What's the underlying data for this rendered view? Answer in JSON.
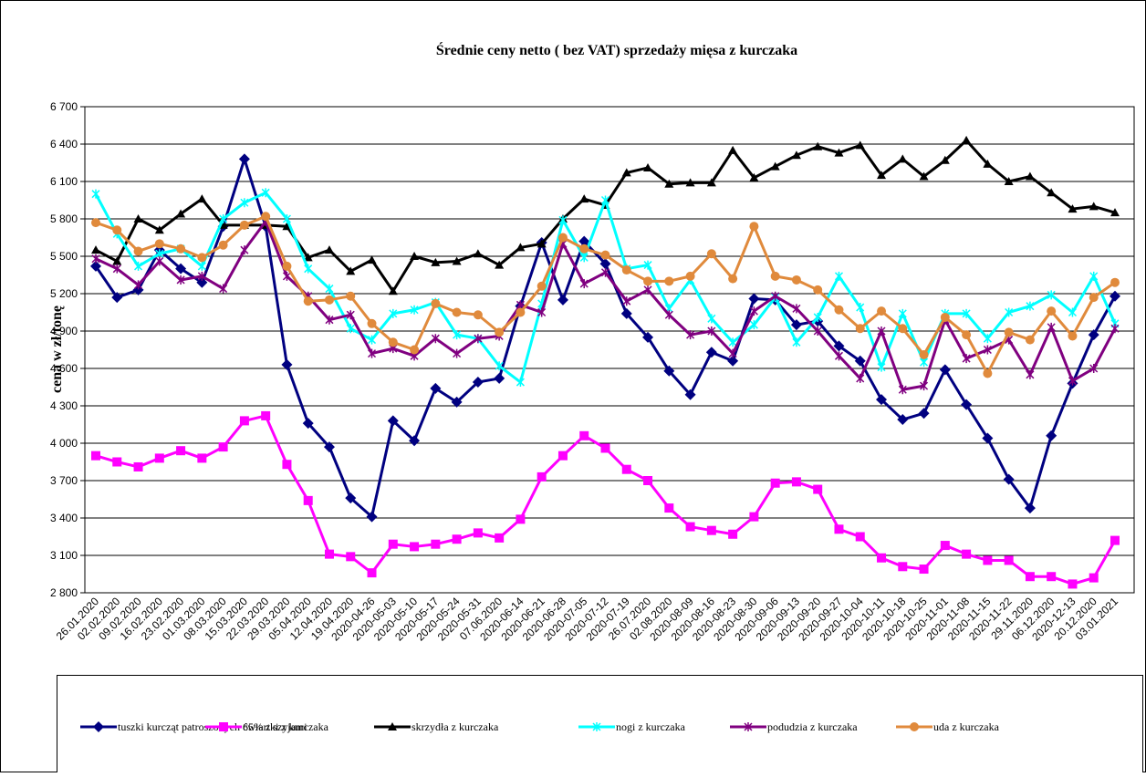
{
  "chart_data": {
    "type": "line",
    "title": "Średnie ceny netto ( bez VAT) sprzedaży mięsa z kurczaka",
    "y_label": "cena w zł/tonę",
    "categories": [
      "26.01.2020",
      "02.02.2020",
      "09.02.2020",
      "16.02.2020",
      "23.02.2020",
      "01.03.2020",
      "08.03.2020",
      "15.03.2020",
      "22.03.2020",
      "29.03.2020",
      "05.04.2020",
      "12.04.2020",
      "19.04.2020",
      "2020-04-26",
      "2020-05-03",
      "2020-05-10",
      "2020-05-17",
      "2020-05-24",
      "2020-05-31",
      "07.06.2020",
      "2020-06-14",
      "2020-06-21",
      "2020-06-28",
      "2020-07-05",
      "2020-07-12",
      "2020-07-19",
      "26.07.2020",
      "02.08.2020",
      "2020-08-09",
      "2020-08-16",
      "2020-08-23",
      "2020-08-30",
      "2020-09-06",
      "2020-09-13",
      "2020-09-20",
      "2020-09-27",
      "2020-10-04",
      "2020-10-11",
      "2020-10-18",
      "2020-10-25",
      "2020-11-01",
      "2020-11-08",
      "2020-11-15",
      "2020-11-22",
      "29.11.2020",
      "06.12.2020",
      "2020-12-13",
      "20.12.2020",
      "03.01.2021"
    ],
    "series": [
      {
        "name": "tuszki kurcząt patroszonych 65% z szyjami",
        "color": "#000080",
        "marker": "diamond",
        "values": [
          5420,
          5170,
          5230,
          5550,
          5400,
          5290,
          5740,
          6280,
          5740,
          4630,
          4160,
          3970,
          3560,
          3410,
          4180,
          4020,
          4440,
          4330,
          4490,
          4520,
          5100,
          5610,
          5150,
          5620,
          5440,
          5040,
          4850,
          4580,
          4390,
          4730,
          4660,
          5160,
          5150,
          4950,
          4980,
          4780,
          4660,
          4350,
          4190,
          4240,
          4590,
          4310,
          4040,
          3710,
          3480,
          4060,
          4480,
          4870,
          5180
        ]
      },
      {
        "name": "ćwiartki z kurczaka",
        "color": "#ff00ff",
        "marker": "square",
        "values": [
          3900,
          3850,
          3810,
          3880,
          3940,
          3880,
          3970,
          4180,
          4220,
          3830,
          3540,
          3110,
          3090,
          2960,
          3190,
          3170,
          3190,
          3230,
          3280,
          3240,
          3390,
          3730,
          3900,
          4060,
          3960,
          3790,
          3700,
          3480,
          3330,
          3300,
          3270,
          3410,
          3680,
          3690,
          3630,
          3310,
          3250,
          3080,
          3010,
          2990,
          3180,
          3110,
          3060,
          3060,
          2930,
          2930,
          2870,
          2920,
          3220
        ]
      },
      {
        "name": "skrzydła z kurczaka",
        "color": "#000000",
        "marker": "triangle",
        "values": [
          5550,
          5460,
          5800,
          5710,
          5840,
          5960,
          5750,
          5750,
          5750,
          5740,
          5490,
          5550,
          5380,
          5470,
          5220,
          5500,
          5450,
          5460,
          5520,
          5430,
          5570,
          5600,
          5800,
          5960,
          5910,
          6170,
          6210,
          6080,
          6090,
          6090,
          6350,
          6130,
          6220,
          6310,
          6380,
          6330,
          6390,
          6150,
          6280,
          6140,
          6270,
          6430,
          6240,
          6100,
          6140,
          6010,
          5880,
          5900,
          5850
        ]
      },
      {
        "name": "nogi z kurczaka",
        "color": "#00ffff",
        "marker": "cross",
        "values": [
          6000,
          5680,
          5420,
          5520,
          5560,
          5420,
          5800,
          5930,
          6010,
          5800,
          5400,
          5240,
          4920,
          4830,
          5040,
          5070,
          5130,
          4870,
          4840,
          4620,
          4490,
          5120,
          5790,
          5490,
          5950,
          5400,
          5430,
          5080,
          5310,
          5000,
          4810,
          4950,
          5170,
          4810,
          5010,
          5340,
          5090,
          4610,
          5040,
          4650,
          5040,
          5040,
          4840,
          5050,
          5100,
          5190,
          5050,
          5340,
          4960
        ]
      },
      {
        "name": "podudzia z kurczaka",
        "color": "#800080",
        "marker": "asterisk",
        "values": [
          5480,
          5400,
          5270,
          5460,
          5310,
          5340,
          5240,
          5550,
          5780,
          5340,
          5180,
          4990,
          5030,
          4720,
          4760,
          4700,
          4840,
          4720,
          4840,
          4860,
          5110,
          5050,
          5600,
          5280,
          5370,
          5140,
          5230,
          5030,
          4870,
          4900,
          4720,
          5060,
          5180,
          5080,
          4900,
          4700,
          4520,
          4900,
          4430,
          4460,
          4990,
          4680,
          4750,
          4830,
          4550,
          4930,
          4500,
          4600,
          4920
        ]
      },
      {
        "name": "uda z kurczaka",
        "color": "#e08a3c",
        "marker": "circle",
        "values": [
          5770,
          5710,
          5540,
          5600,
          5560,
          5490,
          5590,
          5750,
          5820,
          5420,
          5140,
          5150,
          5180,
          4960,
          4810,
          4750,
          5120,
          5050,
          5030,
          4890,
          5050,
          5260,
          5650,
          5560,
          5510,
          5390,
          5300,
          5300,
          5340,
          5520,
          5320,
          5740,
          5340,
          5310,
          5230,
          5070,
          4920,
          5060,
          4920,
          4710,
          5010,
          4870,
          4560,
          4890,
          4830,
          5060,
          4860,
          5170,
          5290
        ]
      }
    ],
    "ylim": [
      2800,
      6700
    ],
    "yticks": [
      {
        "value": 2800,
        "label": "2 800"
      },
      {
        "value": 3100,
        "label": "3 100"
      },
      {
        "value": 3400,
        "label": "3 400"
      },
      {
        "value": 3700,
        "label": "3 700"
      },
      {
        "value": 4000,
        "label": "4 000"
      },
      {
        "value": 4300,
        "label": "4 300"
      },
      {
        "value": 4600,
        "label": "4 600"
      },
      {
        "value": 4900,
        "label": "4 900"
      },
      {
        "value": 5200,
        "label": "5 200"
      },
      {
        "value": 5500,
        "label": "5 500"
      },
      {
        "value": 5800,
        "label": "5 800"
      },
      {
        "value": 6100,
        "label": "6 100"
      },
      {
        "value": 6400,
        "label": "6 400"
      },
      {
        "value": 6700,
        "label": "6 700"
      }
    ],
    "grid": true
  }
}
